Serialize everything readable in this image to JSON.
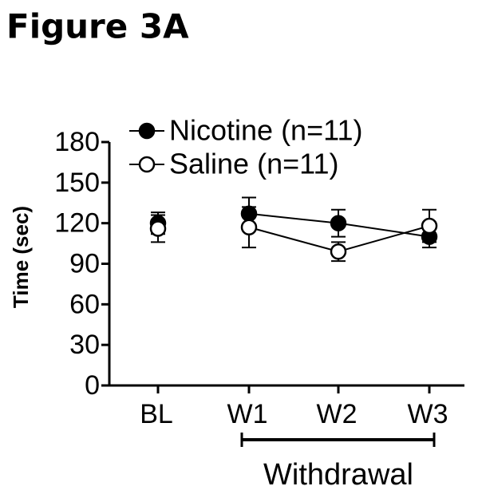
{
  "figure_label": "Figure 3A",
  "chart_data": {
    "type": "line",
    "ylabel": "Time (sec)",
    "categories": [
      "BL",
      "W1",
      "W2",
      "W3"
    ],
    "series": [
      {
        "name": "Nicotine (n=11)",
        "color": "#000000",
        "marker": "filled",
        "values": [
          120,
          127,
          120,
          110
        ],
        "errors": [
          8,
          12,
          10,
          8
        ]
      },
      {
        "name": "Saline (n=11)",
        "color": "#000000",
        "marker": "open",
        "values": [
          116,
          117,
          99,
          118
        ],
        "errors": [
          10,
          15,
          7,
          12
        ]
      }
    ],
    "ylim": [
      0,
      180
    ],
    "yticks": [
      0,
      30,
      60,
      90,
      120,
      150,
      180
    ],
    "bracket_label": "Withdrawal",
    "legend": "upper left",
    "grid": false
  }
}
